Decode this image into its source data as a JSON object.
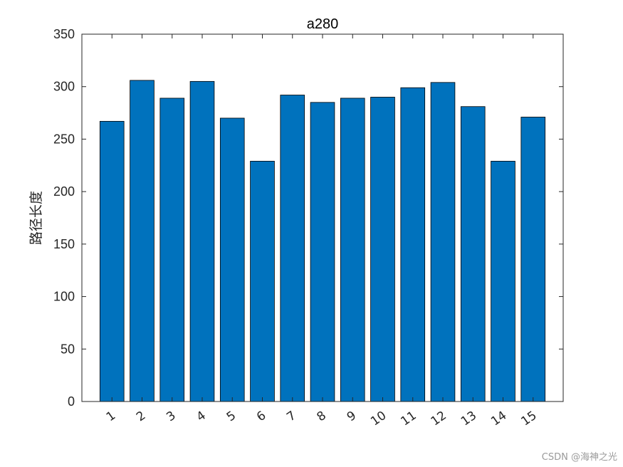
{
  "chart_data": {
    "type": "bar",
    "title": "a280",
    "xlabel": "",
    "ylabel": "路径长度",
    "ylim": [
      0,
      350
    ],
    "yticks": [
      0,
      50,
      100,
      150,
      200,
      250,
      300,
      350
    ],
    "categories": [
      "1",
      "2",
      "3",
      "4",
      "5",
      "6",
      "7",
      "8",
      "9",
      "10",
      "11",
      "12",
      "13",
      "14",
      "15"
    ],
    "values": [
      267,
      306,
      289,
      305,
      270,
      229,
      292,
      285,
      289,
      290,
      299,
      304,
      281,
      229,
      271
    ],
    "bar_color": "#0072BD",
    "edge_color": "#000000",
    "grid": false,
    "legend": "none"
  },
  "watermark": "CSDN @海神之光"
}
